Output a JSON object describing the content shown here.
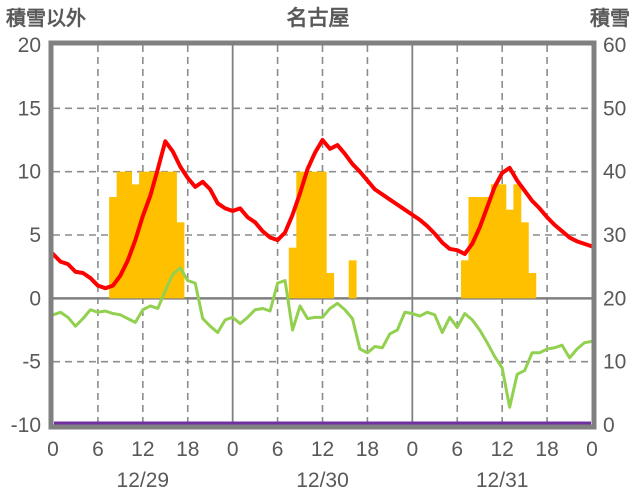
{
  "header": {
    "left_axis_title": "積雪以外",
    "title": "名古屋",
    "right_axis_title": "積雪"
  },
  "colors": {
    "temperature_line": "#FF0000",
    "green_line": "#92D050",
    "sunshine_bar": "#FFC000",
    "snow_line": "#7030A0",
    "grid": "#8C8C8C",
    "border": "#808080",
    "text": "#595959"
  },
  "chart_data": {
    "type": "bar",
    "title": "名古屋",
    "left_axis": {
      "label": "積雪以外",
      "min": -10,
      "max": 20,
      "tick_step": 5,
      "ticks": [
        20,
        15,
        10,
        5,
        0,
        -5,
        -10
      ]
    },
    "right_axis": {
      "label": "積雪",
      "min": 0,
      "max": 60,
      "tick_step": 10,
      "ticks": [
        60,
        50,
        40,
        30,
        20,
        10,
        0
      ]
    },
    "x_axis": {
      "days": [
        "12/29",
        "12/30",
        "12/31"
      ],
      "hour_ticks_per_day": [
        0,
        6,
        12,
        18
      ],
      "final_tick": "0",
      "hours_per_day": 24,
      "dashed_gridline_hours": [
        6,
        12,
        18
      ]
    },
    "grid": {
      "horizontal_dashed_ticks": [
        15,
        10,
        5,
        -5
      ],
      "zero_line_solid": true,
      "day_boundary_solid": true
    },
    "series": [
      {
        "name": "temperature-red-line",
        "type": "line",
        "axis": "left",
        "color": "#FF0000",
        "width": 4,
        "values_by_day": [
          [
            3.5,
            2.9,
            2.7,
            2.1,
            2.0,
            1.6,
            1.0,
            0.8,
            1.0,
            1.8,
            3.0,
            4.6,
            6.5,
            8.1,
            10.2,
            12.4,
            11.6,
            10.4,
            9.5,
            8.8,
            9.2,
            8.6,
            7.5,
            7.1
          ],
          [
            6.9,
            7.1,
            6.4,
            6.0,
            5.3,
            4.8,
            4.6,
            5.2,
            6.6,
            8.3,
            10.2,
            11.5,
            12.5,
            11.8,
            12.1,
            11.4,
            10.6,
            10.0,
            9.3,
            8.6,
            8.2,
            7.8,
            7.4,
            7.0
          ],
          [
            6.6,
            6.2,
            5.7,
            5.1,
            4.4,
            3.9,
            3.8,
            3.5,
            4.3,
            5.6,
            7.2,
            8.8,
            9.9,
            10.3,
            9.3,
            8.5,
            7.7,
            7.1,
            6.4,
            5.8,
            5.3,
            4.8,
            4.5,
            4.3
          ]
        ],
        "terminal_value": 4.1
      },
      {
        "name": "green-line",
        "type": "line",
        "axis": "left",
        "color": "#92D050",
        "width": 3,
        "values_by_day": [
          [
            -1.3,
            -1.1,
            -1.5,
            -2.2,
            -1.6,
            -0.9,
            -1.1,
            -1.0,
            -1.2,
            -1.3,
            -1.6,
            -1.9,
            -0.9,
            -0.6,
            -0.8,
            0.6,
            1.9,
            2.4,
            1.4,
            1.2,
            -1.6,
            -2.2,
            -2.7,
            -1.7
          ],
          [
            -1.5,
            -2.0,
            -1.5,
            -0.9,
            -0.8,
            -1.0,
            1.2,
            1.4,
            -2.5,
            -0.6,
            -1.6,
            -1.5,
            -1.5,
            -0.8,
            -0.4,
            -0.9,
            -1.6,
            -4.0,
            -4.3,
            -3.8,
            -3.9,
            -2.8,
            -2.5,
            -1.1
          ],
          [
            -1.2,
            -1.4,
            -1.1,
            -1.3,
            -2.7,
            -1.5,
            -2.3,
            -1.2,
            -1.7,
            -2.5,
            -3.5,
            -4.6,
            -5.5,
            -8.6,
            -6.0,
            -5.7,
            -4.3,
            -4.3,
            -4.0,
            -3.9,
            -3.7,
            -4.7,
            -4.0,
            -3.5
          ]
        ],
        "terminal_value": -3.4
      },
      {
        "name": "sunshine-bars",
        "type": "bar",
        "axis": "left",
        "color": "#FFC000",
        "values_by_day": [
          [
            0,
            0,
            0,
            0,
            0,
            0,
            0,
            0,
            8,
            10,
            10,
            9,
            10,
            10,
            10,
            10,
            10,
            6,
            0,
            0,
            0,
            0,
            0,
            0
          ],
          [
            0,
            0,
            0,
            0,
            0,
            0,
            0,
            0,
            4,
            10,
            10,
            10,
            10,
            2,
            0,
            0,
            3,
            0,
            0,
            0,
            0,
            0,
            0,
            0
          ],
          [
            0,
            0,
            0,
            0,
            0,
            0,
            0,
            3,
            8,
            8,
            8,
            9,
            9,
            7,
            9,
            6,
            2,
            0,
            0,
            0,
            0,
            0,
            0,
            0
          ]
        ]
      },
      {
        "name": "snow-depth-purple-line",
        "type": "constant-line",
        "axis": "right",
        "color": "#7030A0",
        "width": 3,
        "constant_value": 0
      }
    ]
  }
}
